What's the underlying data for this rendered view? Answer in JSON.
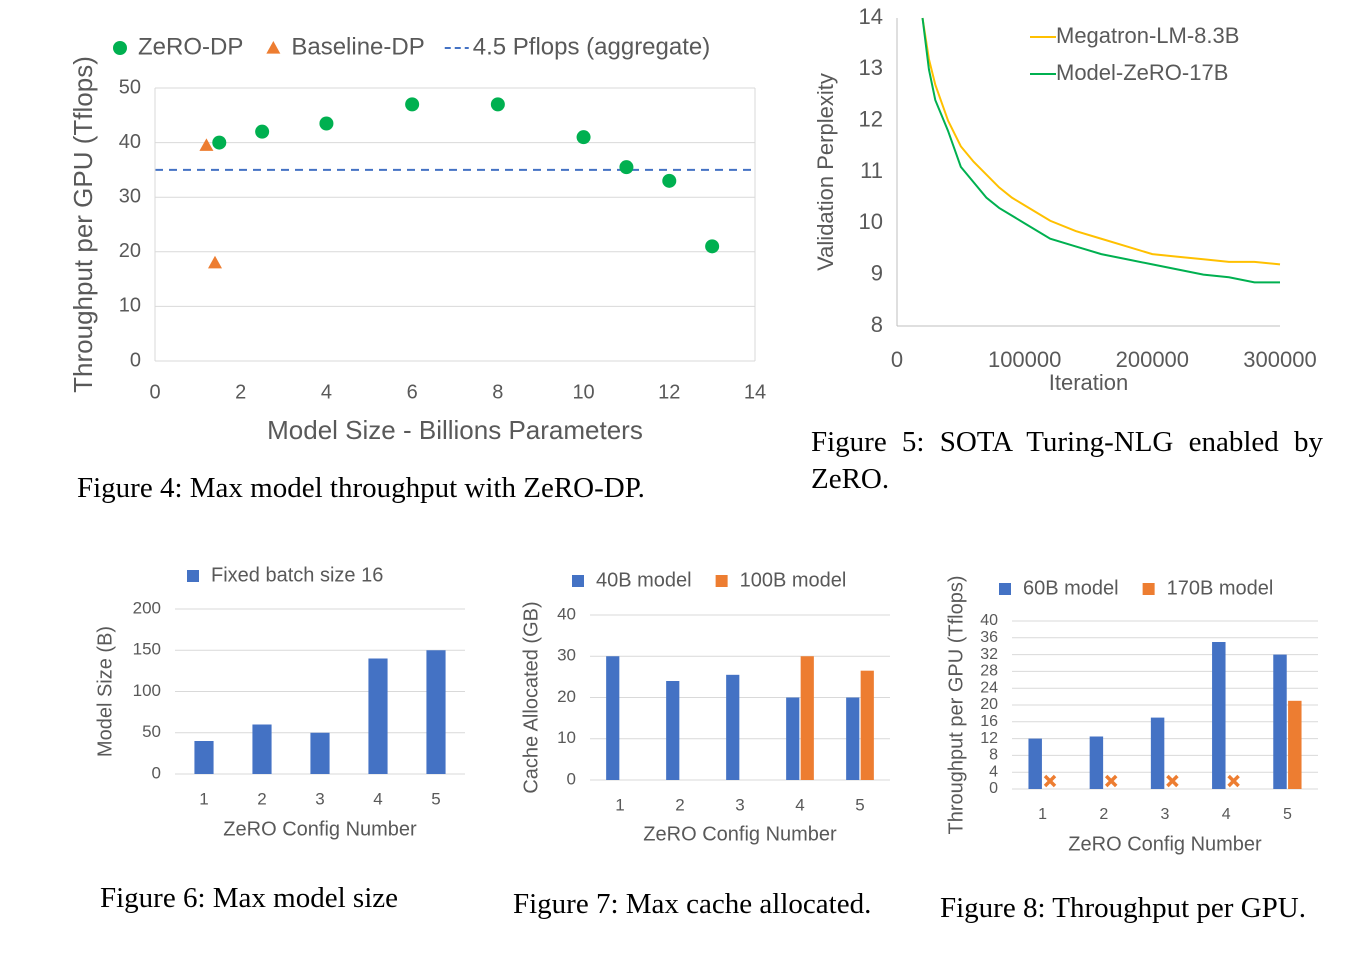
{
  "chart_data": [
    {
      "type": "scatter",
      "xlabel": "Model Size - Billions Parameters",
      "ylabel": "Throughput per GPU (Tflops)",
      "caption": "Figure 4: Max model throughput with ZeRO-DP.",
      "xlim": [
        0,
        14
      ],
      "xticks": [
        0,
        2,
        4,
        6,
        8,
        10,
        12,
        14
      ],
      "ylim": [
        0,
        50
      ],
      "yticks": [
        0,
        10,
        20,
        30,
        40,
        50
      ],
      "grid": true,
      "series": [
        {
          "name": "ZeRO-DP",
          "color": "#00b050",
          "marker": "circle",
          "x": [
            1.5,
            2.5,
            4,
            6,
            8,
            10,
            11,
            12,
            13
          ],
          "values": [
            40,
            42,
            43.5,
            47,
            47,
            41,
            35.5,
            33,
            21
          ]
        },
        {
          "name": "Baseline-DP",
          "color": "#ed7d31",
          "marker": "triangle",
          "x": [
            1.2,
            1.4
          ],
          "values": [
            39.5,
            18
          ]
        }
      ],
      "hlines": [
        {
          "name": "4.5 Pflops (aggregate)",
          "value": 35,
          "color": "#4472c4"
        }
      ]
    },
    {
      "type": "line",
      "xlabel": "Iteration",
      "ylabel": "Validation Perplexity",
      "caption": "Figure 5: SOTA Turing-NLG enabled by ZeRO.",
      "xlim": [
        0,
        300000
      ],
      "xticks": [
        0,
        100000,
        200000,
        300000
      ],
      "ylim": [
        8,
        14
      ],
      "yticks": [
        8,
        9,
        10,
        11,
        12,
        13,
        14
      ],
      "grid": false,
      "x": [
        20000,
        25000,
        30000,
        40000,
        50000,
        60000,
        70000,
        80000,
        90000,
        100000,
        120000,
        140000,
        160000,
        180000,
        200000,
        220000,
        240000,
        260000,
        280000,
        300000
      ],
      "series": [
        {
          "name": "Megatron-LM-8.3B",
          "color": "#ffc000",
          "values": [
            14,
            13.2,
            12.7,
            12.0,
            11.5,
            11.2,
            10.95,
            10.7,
            10.5,
            10.35,
            10.05,
            9.85,
            9.7,
            9.55,
            9.4,
            9.35,
            9.3,
            9.25,
            9.25,
            9.2
          ]
        },
        {
          "name": "Model-ZeRO-17B",
          "color": "#00b050",
          "values": [
            14,
            13.0,
            12.4,
            11.8,
            11.1,
            10.8,
            10.5,
            10.3,
            10.15,
            10.0,
            9.7,
            9.55,
            9.4,
            9.3,
            9.2,
            9.1,
            9.0,
            8.95,
            8.85,
            8.85
          ]
        }
      ]
    },
    {
      "type": "bar",
      "xlabel": "ZeRO Config Number",
      "ylabel": "Model Size (B)",
      "caption": "Figure 6: Max model size",
      "categories": [
        "1",
        "2",
        "3",
        "4",
        "5"
      ],
      "ylim": [
        0,
        200
      ],
      "yticks": [
        0,
        50,
        100,
        150,
        200
      ],
      "grid": true,
      "series": [
        {
          "name": "Fixed batch size 16",
          "color": "#4472c4",
          "values": [
            40,
            60,
            50,
            140,
            150
          ]
        }
      ]
    },
    {
      "type": "bar",
      "xlabel": "ZeRO Config Number",
      "ylabel": "Cache Allocated (GB)",
      "caption": "Figure 7: Max cache allocated.",
      "categories": [
        "1",
        "2",
        "3",
        "4",
        "5"
      ],
      "ylim": [
        0,
        40
      ],
      "yticks": [
        0,
        10,
        20,
        30,
        40
      ],
      "grid": true,
      "series": [
        {
          "name": "40B model",
          "color": "#4472c4",
          "values": [
            30,
            24,
            25.5,
            20,
            20
          ]
        },
        {
          "name": "100B model",
          "color": "#ed7d31",
          "values": [
            null,
            null,
            null,
            30,
            26.5
          ]
        }
      ]
    },
    {
      "type": "bar",
      "xlabel": "ZeRO Config Number",
      "ylabel": "Throughput per GPU (Tflops)",
      "caption": "Figure 8: Throughput per GPU.",
      "categories": [
        "1",
        "2",
        "3",
        "4",
        "5"
      ],
      "ylim": [
        0,
        40
      ],
      "yticks": [
        0,
        4,
        8,
        12,
        16,
        20,
        24,
        28,
        32,
        36,
        40
      ],
      "grid": true,
      "missing_marker": "x",
      "series": [
        {
          "name": "60B model",
          "color": "#4472c4",
          "values": [
            12,
            12.5,
            17,
            35,
            32
          ]
        },
        {
          "name": "170B model",
          "color": "#ed7d31",
          "values": [
            null,
            null,
            null,
            null,
            21
          ]
        }
      ]
    }
  ]
}
